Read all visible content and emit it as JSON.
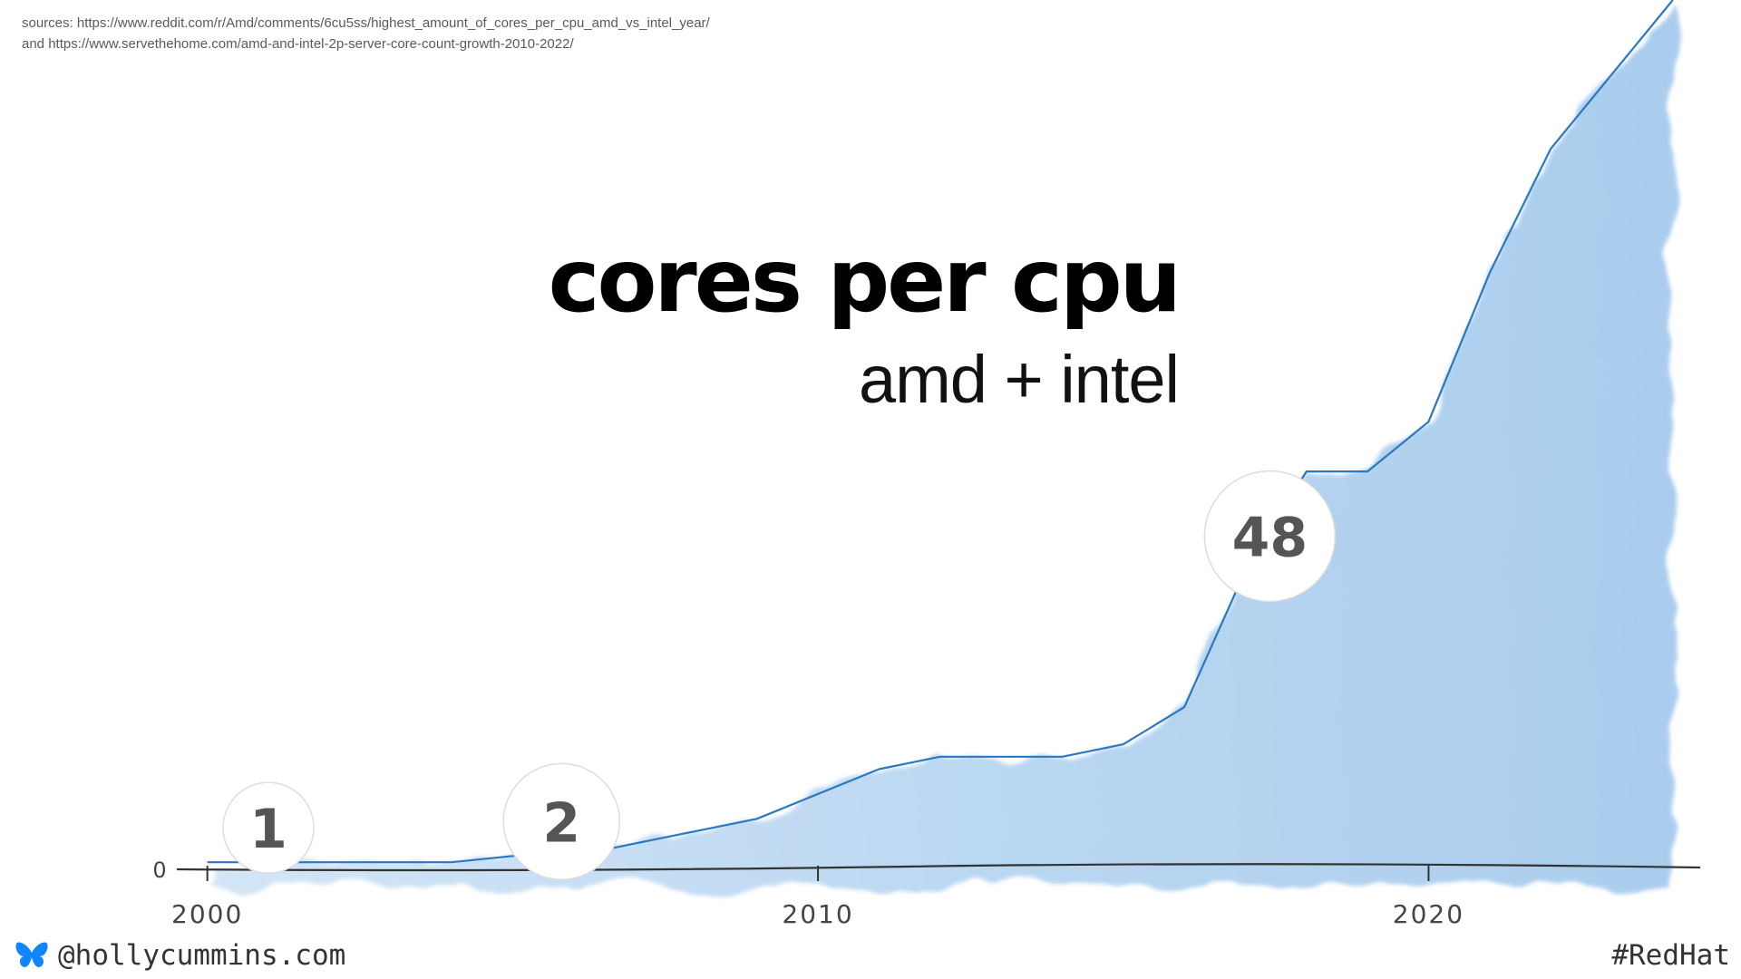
{
  "sources": {
    "line1": "sources: https://www.reddit.com/r/Amd/comments/6cu5ss/highest_amount_of_cores_per_cpu_amd_vs_intel_year/",
    "line2": "and https://www.servethehome.com/amd-and-intel-2p-server-core-count-growth-2010-2022/"
  },
  "footer": {
    "handle": "@hollycummins.com",
    "hashtag": "#RedHat",
    "handle_icon": "butterfly-icon"
  },
  "colors": {
    "line": "#2a78c0",
    "fill": "#a9cdee",
    "badge_text": "#555555",
    "axis": "#333333"
  },
  "chart_data": {
    "type": "area",
    "title": "cores per cpu",
    "subtitle": "amd + intel",
    "xlabel": "",
    "ylabel": "",
    "xlim": [
      1999.5,
      2024.3
    ],
    "ylim": [
      0,
      140
    ],
    "x_ticks": [
      "2000",
      "2010",
      "2020"
    ],
    "y_ticks": [
      "0"
    ],
    "grid": false,
    "series": [
      {
        "x": [
          2000,
          2001,
          2002,
          2003,
          2004,
          2005,
          2006,
          2007,
          2008,
          2009,
          2010,
          2011,
          2012,
          2013,
          2014,
          2015,
          2016,
          2017,
          2018,
          2019,
          2020,
          2021,
          2022,
          2023,
          2024
        ],
        "y": [
          1,
          1,
          1,
          1,
          1,
          2,
          2,
          4,
          6,
          8,
          12,
          16,
          18,
          18,
          18,
          20,
          26,
          48,
          64,
          64,
          72,
          96,
          116,
          128,
          140
        ]
      }
    ],
    "annotations": [
      {
        "label": "1",
        "x": 2001,
        "y": 1
      },
      {
        "label": "2",
        "x": 2005.8,
        "y": 2
      },
      {
        "label": "48",
        "x": 2017.4,
        "y": 48
      }
    ]
  }
}
